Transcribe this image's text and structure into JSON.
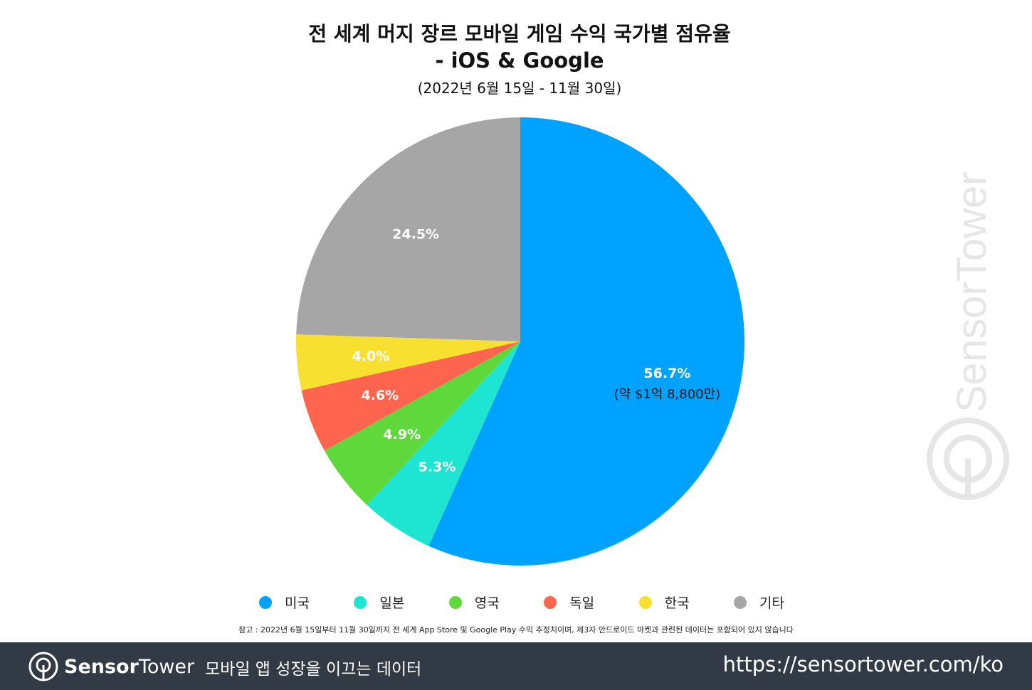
{
  "title_line1": "전 세계 머지 장르 모바일 게임 수익 국가별 점유율",
  "title_line2": "- iOS & Google",
  "subtitle": "(2022년 6월 15일 - 11월 30일)",
  "chart_data": {
    "type": "pie",
    "start": "top",
    "direction": "clockwise",
    "categories": [
      "미국",
      "일본",
      "영국",
      "독일",
      "한국",
      "기타"
    ],
    "values": [
      56.7,
      5.3,
      4.9,
      4.6,
      4.0,
      24.5
    ],
    "labels": [
      "56.7%",
      "5.3%",
      "4.9%",
      "4.6%",
      "4.0%",
      "24.5%"
    ],
    "annotation": "(약 $1억 8,800만)",
    "colors": [
      "#00a2ff",
      "#1de5d1",
      "#5ed83a",
      "#ff644e",
      "#f8e030",
      "#a6a6a6"
    ],
    "legend_position": "bottom"
  },
  "note": "참고 : 2022년 6월 15일부터 11월 30일까지 전 세계 App Store 및 Google Play 수익 추정치이며, 제3자 안드로이드 마켓과 관련된 데이터는 포함되어 있지 않습니다",
  "footer": {
    "brand_bold": "Sensor",
    "brand_light": "Tower",
    "tagline": "모바일 앱 성장을 이끄는 데이터",
    "url": "https://sensortower.com/ko"
  },
  "watermark": "SensorTower",
  "icons": {
    "logo": "sensortower-logo-icon"
  }
}
